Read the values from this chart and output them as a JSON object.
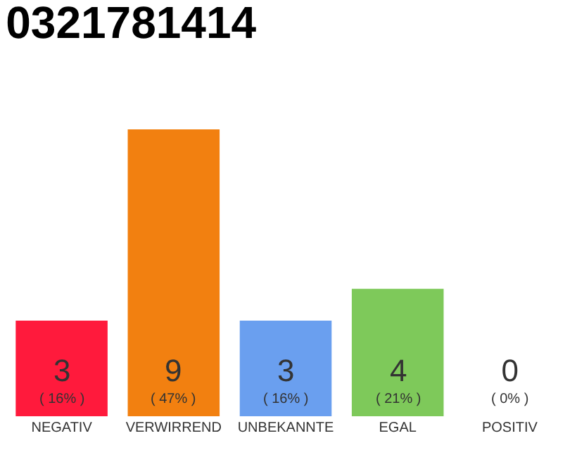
{
  "chart_data": {
    "type": "bar",
    "title": "0321781414",
    "categories": [
      "NEGATIV",
      "VERWIRREND",
      "UNBEKANNTE",
      "EGAL",
      "POSITIV"
    ],
    "values": [
      3,
      9,
      3,
      4,
      0
    ],
    "colors": [
      "#ff1a3c",
      "#f28010",
      "#6a9fef",
      "#7ec95a",
      "#d8d8d8"
    ],
    "value_labels": [
      "3\n( 16% )",
      "9\n( 47% )",
      "3\n( 16% )",
      "4\n( 21% )",
      "0\n( 0% )"
    ],
    "legend": false
  }
}
